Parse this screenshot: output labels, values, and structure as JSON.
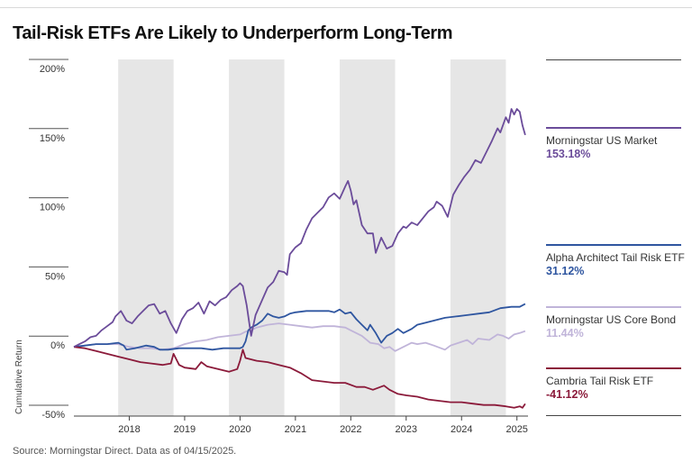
{
  "title": "Tail-Risk ETFs Are Likely to Underperform Long-Term",
  "source": "Source: Morningstar Direct. Data as of 04/15/2025.",
  "chart_data": {
    "type": "line",
    "title": "Tail-Risk ETFs Are Likely to Underperform Long-Term",
    "ylabel": "Cumulative Return",
    "xlabel": "",
    "ylim": [
      -50,
      200
    ],
    "xlim": [
      2017.0,
      2025.2
    ],
    "y_ticks": [
      200,
      150,
      100,
      50,
      0,
      -50
    ],
    "y_tick_labels": [
      "200%",
      "150%",
      "100%",
      "50%",
      "0%",
      "-50%"
    ],
    "x_ticks": [
      2018,
      2019,
      2020,
      2021,
      2022,
      2023,
      2024,
      2025
    ],
    "x_tick_labels": [
      "2018",
      "2019",
      "2020",
      "2021",
      "2022",
      "2023",
      "2024",
      "2025"
    ],
    "shaded_periods": [
      [
        2017.8,
        2018.8
      ],
      [
        2019.8,
        2020.8
      ],
      [
        2021.8,
        2022.8
      ],
      [
        2023.8,
        2024.8
      ]
    ],
    "series": [
      {
        "name": "Morningstar US Market",
        "final_label": "153.18%",
        "color": "#6b4c9a",
        "points": [
          [
            2017.0,
            0
          ],
          [
            2017.1,
            2
          ],
          [
            2017.2,
            4
          ],
          [
            2017.3,
            7
          ],
          [
            2017.4,
            8
          ],
          [
            2017.5,
            12
          ],
          [
            2017.6,
            15
          ],
          [
            2017.7,
            18
          ],
          [
            2017.75,
            22
          ],
          [
            2017.85,
            26
          ],
          [
            2017.95,
            19
          ],
          [
            2018.05,
            17
          ],
          [
            2018.15,
            22
          ],
          [
            2018.25,
            26
          ],
          [
            2018.35,
            30
          ],
          [
            2018.45,
            31
          ],
          [
            2018.55,
            24
          ],
          [
            2018.65,
            26
          ],
          [
            2018.75,
            17
          ],
          [
            2018.85,
            10
          ],
          [
            2018.95,
            20
          ],
          [
            2019.05,
            26
          ],
          [
            2019.15,
            28
          ],
          [
            2019.25,
            32
          ],
          [
            2019.35,
            24
          ],
          [
            2019.45,
            33
          ],
          [
            2019.55,
            30
          ],
          [
            2019.65,
            34
          ],
          [
            2019.75,
            36
          ],
          [
            2019.85,
            41
          ],
          [
            2019.95,
            44
          ],
          [
            2020.0,
            46
          ],
          [
            2020.05,
            44
          ],
          [
            2020.12,
            30
          ],
          [
            2020.2,
            8
          ],
          [
            2020.28,
            23
          ],
          [
            2020.4,
            34
          ],
          [
            2020.5,
            43
          ],
          [
            2020.6,
            47
          ],
          [
            2020.7,
            55
          ],
          [
            2020.8,
            54
          ],
          [
            2020.85,
            52
          ],
          [
            2020.9,
            67
          ],
          [
            2021.0,
            72
          ],
          [
            2021.1,
            75
          ],
          [
            2021.2,
            85
          ],
          [
            2021.3,
            93
          ],
          [
            2021.4,
            97
          ],
          [
            2021.5,
            101
          ],
          [
            2021.6,
            108
          ],
          [
            2021.7,
            111
          ],
          [
            2021.8,
            107
          ],
          [
            2021.9,
            116
          ],
          [
            2021.95,
            120
          ],
          [
            2022.0,
            113
          ],
          [
            2022.05,
            103
          ],
          [
            2022.1,
            106
          ],
          [
            2022.2,
            88
          ],
          [
            2022.3,
            82
          ],
          [
            2022.4,
            82
          ],
          [
            2022.45,
            68
          ],
          [
            2022.55,
            79
          ],
          [
            2022.65,
            71
          ],
          [
            2022.75,
            73
          ],
          [
            2022.85,
            82
          ],
          [
            2022.95,
            87
          ],
          [
            2023.0,
            86
          ],
          [
            2023.1,
            90
          ],
          [
            2023.2,
            88
          ],
          [
            2023.3,
            93
          ],
          [
            2023.4,
            98
          ],
          [
            2023.5,
            101
          ],
          [
            2023.55,
            105
          ],
          [
            2023.65,
            102
          ],
          [
            2023.75,
            94
          ],
          [
            2023.85,
            110
          ],
          [
            2023.95,
            117
          ],
          [
            2024.05,
            123
          ],
          [
            2024.15,
            128
          ],
          [
            2024.25,
            135
          ],
          [
            2024.35,
            133
          ],
          [
            2024.45,
            141
          ],
          [
            2024.55,
            149
          ],
          [
            2024.65,
            158
          ],
          [
            2024.7,
            155
          ],
          [
            2024.8,
            166
          ],
          [
            2024.85,
            162
          ],
          [
            2024.9,
            172
          ],
          [
            2024.95,
            168
          ],
          [
            2025.0,
            172
          ],
          [
            2025.05,
            170
          ],
          [
            2025.1,
            160
          ],
          [
            2025.15,
            153.18
          ]
        ]
      },
      {
        "name": "Alpha Architect Tail Risk ETF",
        "final_label": "31.12%",
        "color": "#2f56a0",
        "points": [
          [
            2017.0,
            0
          ],
          [
            2017.2,
            1
          ],
          [
            2017.4,
            2
          ],
          [
            2017.6,
            2
          ],
          [
            2017.8,
            3
          ],
          [
            2017.9,
            1
          ],
          [
            2017.95,
            -2
          ],
          [
            2018.1,
            -1
          ],
          [
            2018.3,
            1
          ],
          [
            2018.45,
            0
          ],
          [
            2018.55,
            -2
          ],
          [
            2018.7,
            -2
          ],
          [
            2018.9,
            -1
          ],
          [
            2019.1,
            -1
          ],
          [
            2019.3,
            -1
          ],
          [
            2019.5,
            -2
          ],
          [
            2019.7,
            -1
          ],
          [
            2019.9,
            -1
          ],
          [
            2020.0,
            -1
          ],
          [
            2020.05,
            0
          ],
          [
            2020.1,
            4
          ],
          [
            2020.15,
            12
          ],
          [
            2020.2,
            14
          ],
          [
            2020.3,
            16
          ],
          [
            2020.4,
            19
          ],
          [
            2020.5,
            24
          ],
          [
            2020.6,
            22
          ],
          [
            2020.7,
            21
          ],
          [
            2020.8,
            22
          ],
          [
            2020.9,
            24
          ],
          [
            2021.0,
            25
          ],
          [
            2021.2,
            26
          ],
          [
            2021.4,
            26
          ],
          [
            2021.6,
            26
          ],
          [
            2021.7,
            25
          ],
          [
            2021.8,
            27
          ],
          [
            2021.9,
            24
          ],
          [
            2022.0,
            25
          ],
          [
            2022.1,
            20
          ],
          [
            2022.2,
            16
          ],
          [
            2022.3,
            12
          ],
          [
            2022.35,
            16
          ],
          [
            2022.45,
            10
          ],
          [
            2022.55,
            3
          ],
          [
            2022.65,
            8
          ],
          [
            2022.75,
            10
          ],
          [
            2022.85,
            13
          ],
          [
            2022.95,
            10
          ],
          [
            2023.1,
            13
          ],
          [
            2023.2,
            16
          ],
          [
            2023.3,
            17
          ],
          [
            2023.5,
            19
          ],
          [
            2023.7,
            21
          ],
          [
            2023.9,
            22
          ],
          [
            2024.1,
            23
          ],
          [
            2024.3,
            24
          ],
          [
            2024.5,
            25
          ],
          [
            2024.7,
            28
          ],
          [
            2024.9,
            29
          ],
          [
            2025.05,
            29
          ],
          [
            2025.15,
            31.12
          ]
        ]
      },
      {
        "name": "Morningstar US Core Bond",
        "final_label": "11.44%",
        "color": "#c0b4d9",
        "points": [
          [
            2017.0,
            0
          ],
          [
            2017.2,
            1
          ],
          [
            2017.4,
            2
          ],
          [
            2017.6,
            2
          ],
          [
            2017.8,
            2
          ],
          [
            2018.0,
            0
          ],
          [
            2018.2,
            -1
          ],
          [
            2018.4,
            -1
          ],
          [
            2018.6,
            -2
          ],
          [
            2018.8,
            -1
          ],
          [
            2019.0,
            2
          ],
          [
            2019.2,
            4
          ],
          [
            2019.4,
            5
          ],
          [
            2019.6,
            7
          ],
          [
            2019.8,
            8
          ],
          [
            2020.0,
            9
          ],
          [
            2020.1,
            11
          ],
          [
            2020.2,
            12
          ],
          [
            2020.3,
            14
          ],
          [
            2020.5,
            16
          ],
          [
            2020.7,
            17
          ],
          [
            2020.9,
            16
          ],
          [
            2021.1,
            15
          ],
          [
            2021.3,
            14
          ],
          [
            2021.5,
            15
          ],
          [
            2021.7,
            15
          ],
          [
            2021.9,
            14
          ],
          [
            2022.0,
            12
          ],
          [
            2022.2,
            8
          ],
          [
            2022.35,
            3
          ],
          [
            2022.5,
            2
          ],
          [
            2022.6,
            -1
          ],
          [
            2022.7,
            0
          ],
          [
            2022.8,
            -3
          ],
          [
            2022.95,
            0
          ],
          [
            2023.1,
            3
          ],
          [
            2023.2,
            2
          ],
          [
            2023.35,
            3
          ],
          [
            2023.5,
            1
          ],
          [
            2023.7,
            -2
          ],
          [
            2023.8,
            1
          ],
          [
            2023.95,
            3
          ],
          [
            2024.1,
            5
          ],
          [
            2024.2,
            2
          ],
          [
            2024.3,
            6
          ],
          [
            2024.5,
            5
          ],
          [
            2024.65,
            9
          ],
          [
            2024.75,
            8
          ],
          [
            2024.85,
            6
          ],
          [
            2024.95,
            9
          ],
          [
            2025.05,
            10
          ],
          [
            2025.15,
            11.44
          ]
        ]
      },
      {
        "name": "Cambria Tail Risk ETF",
        "final_label": "-41.12%",
        "color": "#8b1a3a",
        "points": [
          [
            2017.0,
            0
          ],
          [
            2017.2,
            -1
          ],
          [
            2017.4,
            -3
          ],
          [
            2017.6,
            -5
          ],
          [
            2017.8,
            -7
          ],
          [
            2018.0,
            -9
          ],
          [
            2018.2,
            -11
          ],
          [
            2018.4,
            -12
          ],
          [
            2018.6,
            -13
          ],
          [
            2018.75,
            -12
          ],
          [
            2018.8,
            -5
          ],
          [
            2018.9,
            -13
          ],
          [
            2019.0,
            -15
          ],
          [
            2019.2,
            -16
          ],
          [
            2019.3,
            -11
          ],
          [
            2019.4,
            -14
          ],
          [
            2019.6,
            -16
          ],
          [
            2019.8,
            -18
          ],
          [
            2019.95,
            -16
          ],
          [
            2020.0,
            -10
          ],
          [
            2020.05,
            -2
          ],
          [
            2020.1,
            -8
          ],
          [
            2020.3,
            -10
          ],
          [
            2020.5,
            -11
          ],
          [
            2020.7,
            -13
          ],
          [
            2020.9,
            -15
          ],
          [
            2021.1,
            -19
          ],
          [
            2021.3,
            -24
          ],
          [
            2021.5,
            -25
          ],
          [
            2021.7,
            -26
          ],
          [
            2021.9,
            -26
          ],
          [
            2022.1,
            -29
          ],
          [
            2022.25,
            -29
          ],
          [
            2022.4,
            -31
          ],
          [
            2022.6,
            -28
          ],
          [
            2022.7,
            -31
          ],
          [
            2022.85,
            -34
          ],
          [
            2023.0,
            -35
          ],
          [
            2023.2,
            -36
          ],
          [
            2023.4,
            -38
          ],
          [
            2023.6,
            -39
          ],
          [
            2023.8,
            -40
          ],
          [
            2024.0,
            -40
          ],
          [
            2024.2,
            -41
          ],
          [
            2024.4,
            -42
          ],
          [
            2024.6,
            -42
          ],
          [
            2024.8,
            -43
          ],
          [
            2024.95,
            -44
          ],
          [
            2025.05,
            -43
          ],
          [
            2025.1,
            -44
          ],
          [
            2025.15,
            -41.12
          ]
        ]
      }
    ]
  }
}
